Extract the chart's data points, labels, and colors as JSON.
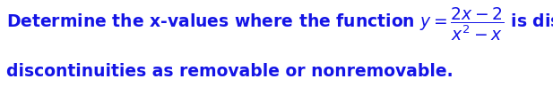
{
  "background_color": "#ffffff",
  "text_color": "#1414e6",
  "line1_math": "Determine the x-values where the function $y = \\dfrac{2x-2}{x^2-x}$ is discontinuous.  Label each of the",
  "line2": "discontinuities as removable or nonremovable.",
  "font_size": 13.5,
  "fig_width": 6.17,
  "fig_height": 0.98,
  "dpi": 100
}
